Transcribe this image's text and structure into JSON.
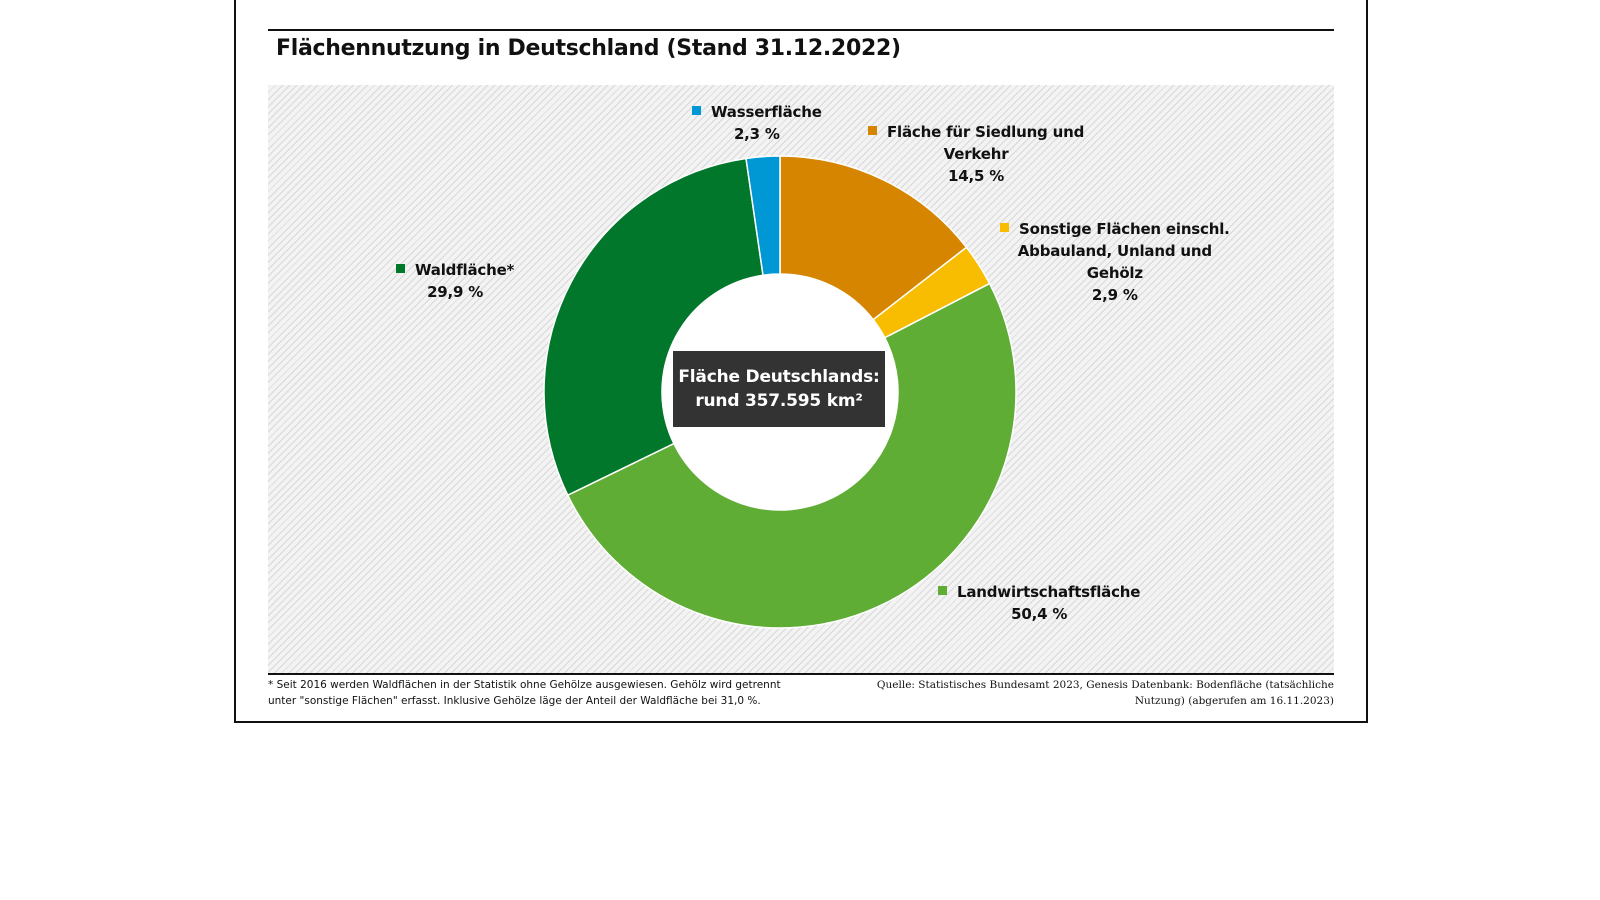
{
  "chart_data": {
    "type": "pie",
    "variant": "donut",
    "title": "Flächennutzung in Deutschland (Stand 31.12.2022)",
    "unit": "%",
    "slices": [
      {
        "name": "Fläche für Siedlung und Verkehr",
        "lines": [
          "Fläche für Siedlung und",
          "Verkehr"
        ],
        "value": 14.5,
        "label": "14,5 %",
        "color": "#d68500"
      },
      {
        "name": "Sonstige Flächen einschl. Abbauland, Unland und Gehölz",
        "lines": [
          "Sonstige Flächen einschl.",
          "Abbauland, Unland und",
          "Gehölz"
        ],
        "value": 2.9,
        "label": "2,9 %",
        "color": "#f8bc00"
      },
      {
        "name": "Landwirtschaftsfläche",
        "lines": [
          "Landwirtschaftsfläche"
        ],
        "value": 50.4,
        "label": "50,4 %",
        "color": "#5fad35"
      },
      {
        "name": "Waldfläche*",
        "lines": [
          "Waldfläche*"
        ],
        "value": 29.9,
        "label": "29,9 %",
        "color": "#00772a"
      },
      {
        "name": "Wasserfläche",
        "lines": [
          "Wasserfläche"
        ],
        "value": 2.3,
        "label": "2,3 %",
        "color": "#0098d4"
      }
    ],
    "center_label": [
      "Fläche Deutschlands:",
      "rund 357.595 km²"
    ]
  },
  "footnote": {
    "line1": "* Seit 2016 werden Waldflächen in der Statistik ohne Gehölze ausgewiesen. Gehölz wird getrennt",
    "line2": "unter \"sonstige Flächen\" erfasst. Inklusive Gehölze läge der Anteil der Waldfläche bei 31,0 %."
  },
  "source": {
    "line1": "Quelle: Statistisches Bundesamt 2023, Genesis Datenbank: Bodenfläche (tatsächliche",
    "line2": "Nutzung) (abgerufen am 16.11.2023)"
  }
}
